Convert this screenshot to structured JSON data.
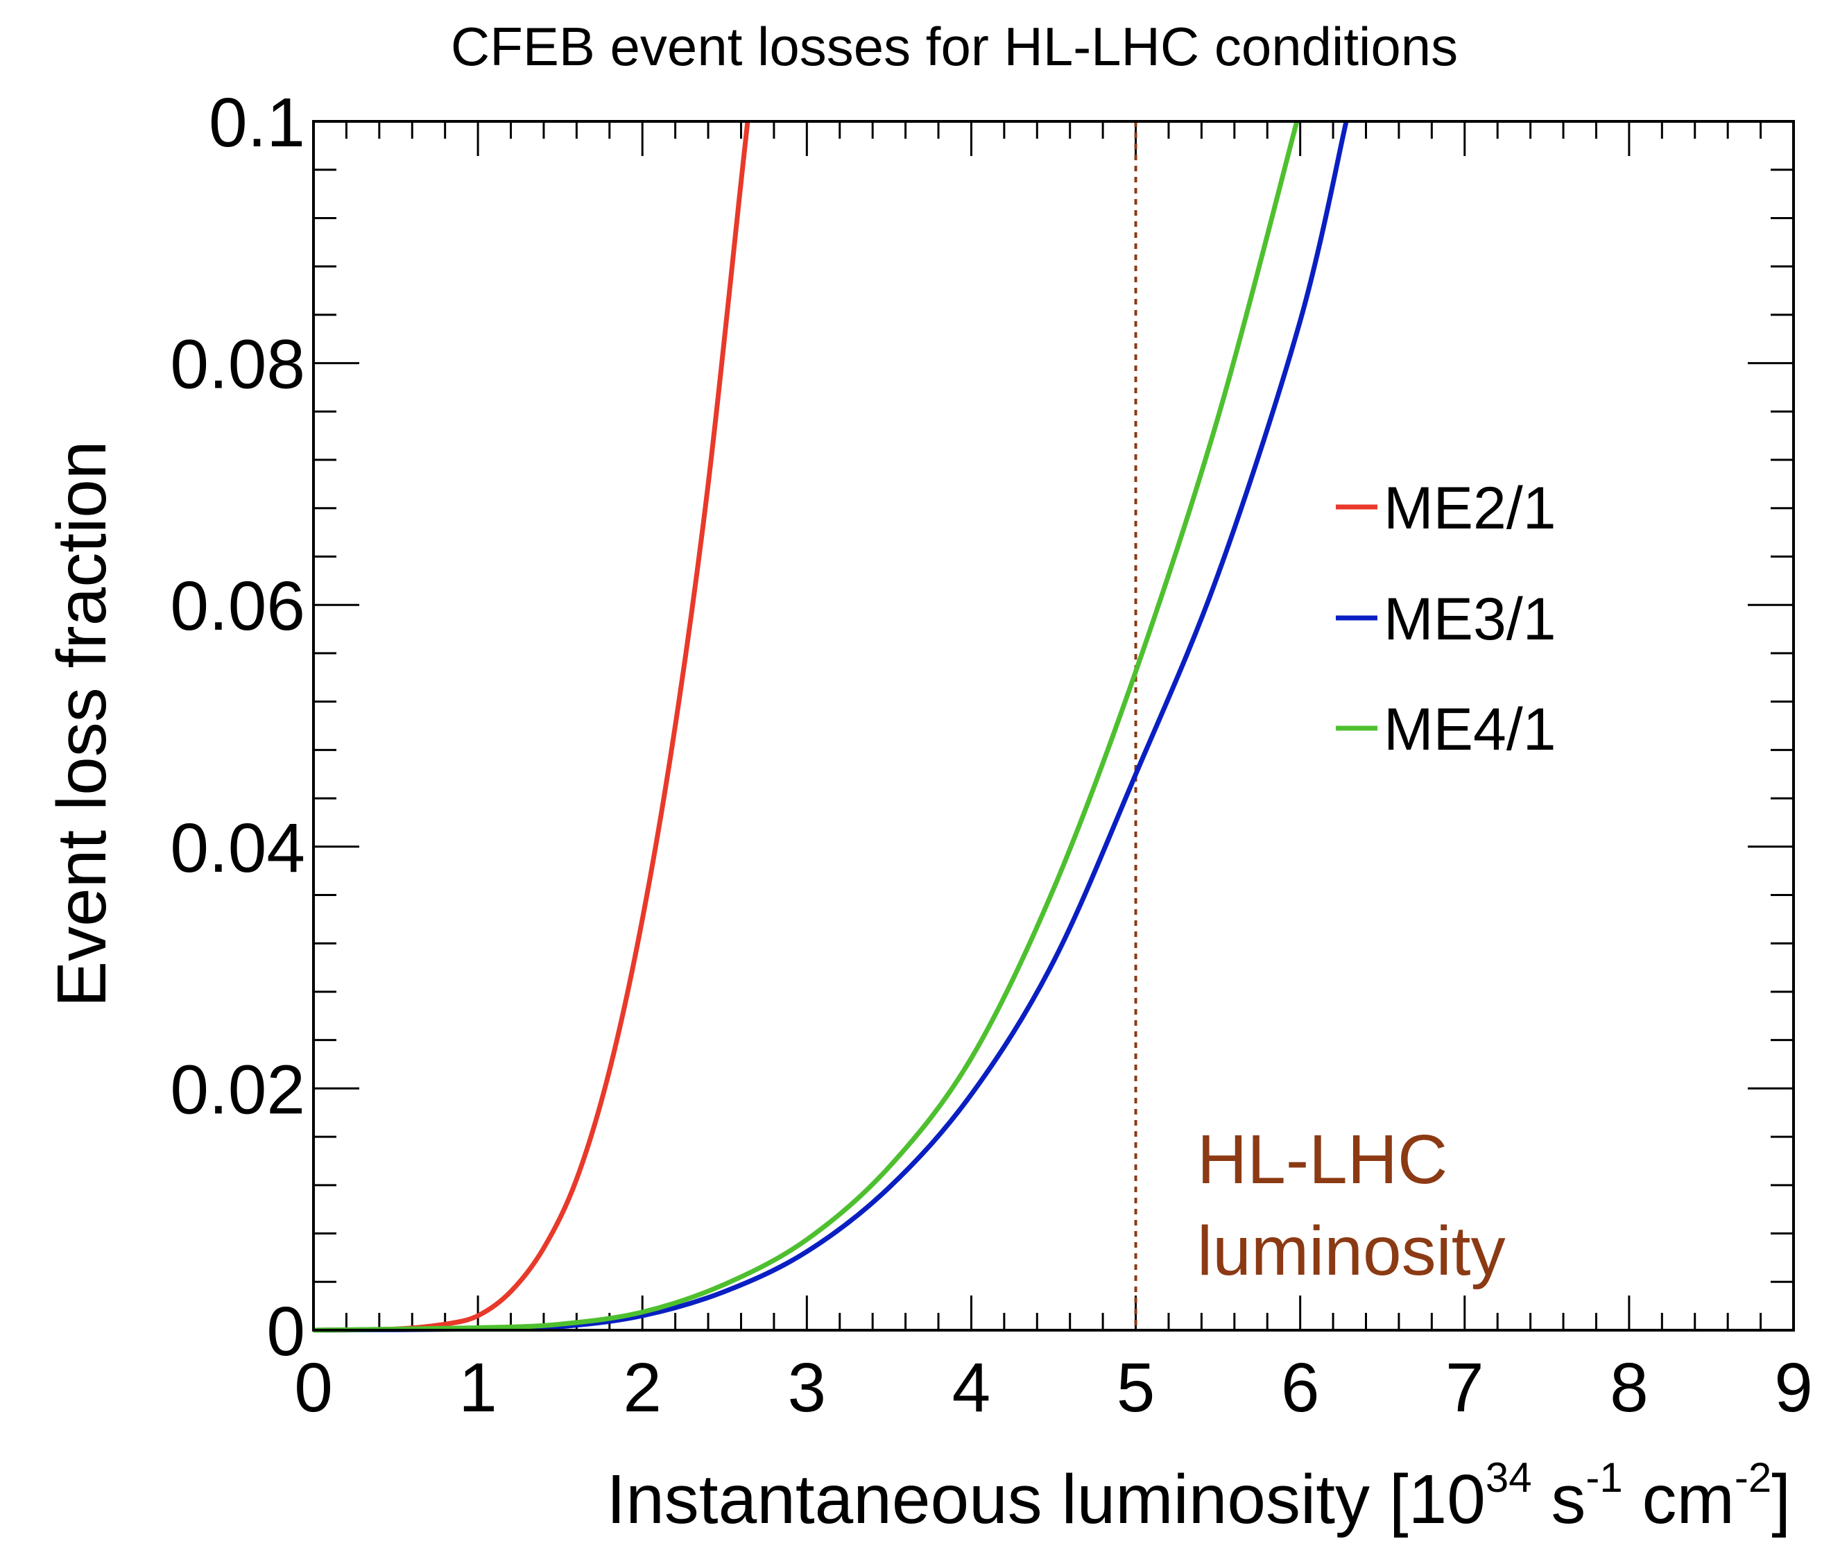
{
  "chart_data": {
    "type": "line",
    "title": "CFEB event losses for HL-LHC conditions",
    "xlabel": "Instantaneous luminosity [10³⁴ s⁻¹ cm⁻²]",
    "xlabel_parts": {
      "base": "Instantaneous luminosity [10",
      "exp": "34",
      "s": " s",
      "s_exp": "-1",
      "cm": " cm",
      "cm_exp": "-2",
      "end": "]"
    },
    "ylabel": "Event loss fraction",
    "xlim": [
      0,
      9
    ],
    "ylim": [
      0,
      0.1
    ],
    "x_ticks": [
      "0",
      "1",
      "2",
      "3",
      "4",
      "5",
      "6",
      "7",
      "8",
      "9"
    ],
    "y_ticks": [
      "0",
      "0.02",
      "0.04",
      "0.06",
      "0.08",
      "0.1"
    ],
    "grid": false,
    "legend_position": "right",
    "series": [
      {
        "name": "ME2/1",
        "color": "#e8392a",
        "x": [
          0,
          0.5,
          0.8,
          1.0,
          1.2,
          1.4,
          1.6,
          1.8,
          2.0,
          2.2,
          2.4,
          2.6,
          2.64
        ],
        "y": [
          0,
          0.0001,
          0.0005,
          0.0012,
          0.0032,
          0.0068,
          0.0125,
          0.0215,
          0.034,
          0.05,
          0.07,
          0.095,
          0.1
        ]
      },
      {
        "name": "ME3/1",
        "color": "#0a1fc2",
        "x": [
          0,
          1.0,
          1.5,
          2.0,
          2.5,
          3.0,
          3.5,
          4.0,
          4.5,
          5.0,
          5.5,
          6.0,
          6.28
        ],
        "y": [
          0,
          0.0001,
          0.0003,
          0.0012,
          0.0032,
          0.0065,
          0.0118,
          0.0195,
          0.0305,
          0.046,
          0.0625,
          0.0835,
          0.1
        ]
      },
      {
        "name": "ME4/1",
        "color": "#4ec02f",
        "x": [
          0,
          1.0,
          1.5,
          2.0,
          2.5,
          3.0,
          3.5,
          4.0,
          4.5,
          5.0,
          5.5,
          5.98
        ],
        "y": [
          0,
          0.0002,
          0.0005,
          0.0015,
          0.0038,
          0.0075,
          0.0135,
          0.0225,
          0.0365,
          0.0545,
          0.0755,
          0.1
        ]
      }
    ],
    "reference_line": {
      "x": 5,
      "color": "#8b3a14",
      "style": "dotted"
    },
    "annotation": {
      "lines": [
        "HL-LHC",
        "luminosity"
      ],
      "color": "#8b3a14"
    }
  }
}
